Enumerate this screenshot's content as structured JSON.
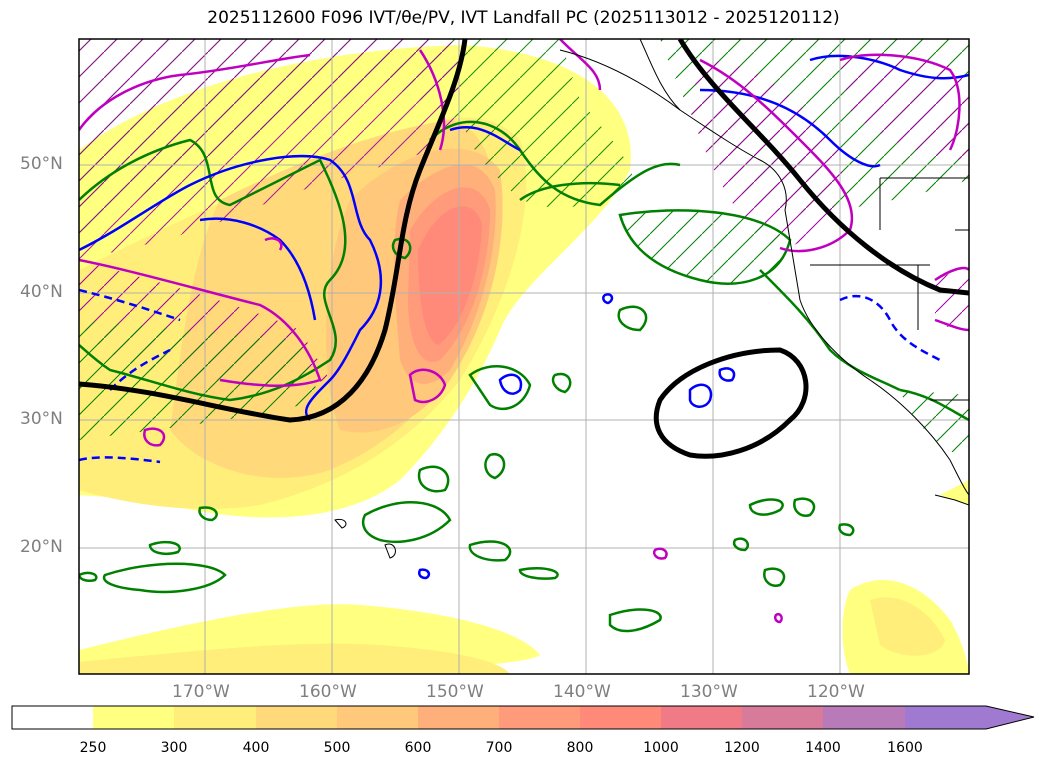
{
  "title": "2025112600 F096 IVT/θe/PV, IVT Landfall PC (2025113012 - 2025120112)",
  "map": {
    "lat_labels": [
      "50°N",
      "40°N",
      "30°N",
      "20°N"
    ],
    "lon_labels": [
      "170°W",
      "160°W",
      "150°W",
      "140°W",
      "130°W",
      "120°W"
    ],
    "colors": {
      "ivt_250": "#ffff80",
      "ivt_300": "#ffee7a",
      "ivt_400": "#ffd97a",
      "ivt_500": "#ffc87a",
      "ivt_600": "#ffb07a",
      "ivt_700": "#ff9a7a",
      "ivt_800": "#ff8a7a",
      "pc_contour": "#000000",
      "theta_e": "#0000ff",
      "pv": "#c000c0",
      "green_contour": "#008000",
      "grid": "#b0b0b0"
    }
  },
  "colorbar": {
    "labels": [
      "250",
      "300",
      "400",
      "500",
      "600",
      "700",
      "800",
      "1000",
      "1200",
      "1400",
      "1600"
    ],
    "colors": [
      "#ffffff",
      "#ffff80",
      "#ffee7a",
      "#ffd97a",
      "#ffc87a",
      "#ffb07a",
      "#ff9a7a",
      "#ff8a7a",
      "#f07a85",
      "#d87a9a",
      "#b87ab8",
      "#a07ad0"
    ]
  }
}
